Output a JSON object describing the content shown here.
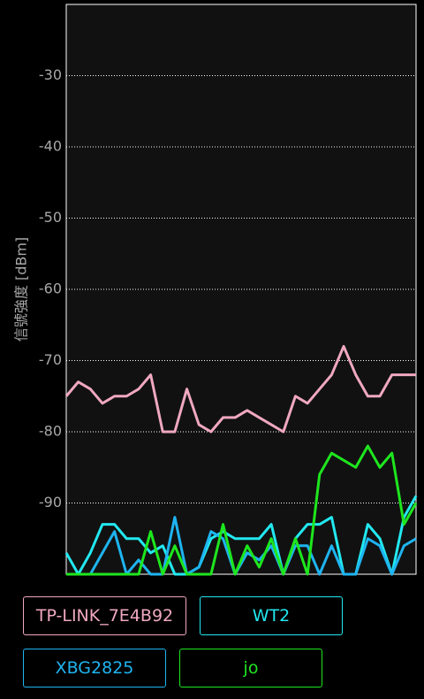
{
  "chart_data": {
    "type": "line",
    "ylabel": "信號強度 [dBm]",
    "ylim": [
      -100,
      -20
    ],
    "yticks": [
      -90,
      -80,
      -70,
      -60,
      -50,
      -40,
      -30
    ],
    "grid": true,
    "series": [
      {
        "name": "TP-LINK_7E4B92",
        "color": "#f0a8c0",
        "values": [
          -75,
          -73,
          -74,
          -76,
          -75,
          -75,
          -74,
          -72,
          -80,
          -80,
          -74,
          -79,
          -80,
          -78,
          -78,
          -77,
          -78,
          -79,
          -80,
          -75,
          -76,
          -74,
          -72,
          -68,
          -72,
          -75,
          -75,
          -72,
          -72,
          -72
        ]
      },
      {
        "name": "WT2",
        "color": "#22e8f0",
        "values": [
          -97,
          -100,
          -97,
          -93,
          -93,
          -95,
          -95,
          -97,
          -96,
          -100,
          -100,
          -99,
          -95,
          -94,
          -95,
          -95,
          -95,
          -93,
          -100,
          -95,
          -93,
          -93,
          -92,
          -100,
          -100,
          -93,
          -95,
          -100,
          -92,
          -89
        ]
      },
      {
        "name": "XBG2825",
        "color": "#1eb4f0",
        "values": [
          -100,
          -100,
          -100,
          -97,
          -94,
          -100,
          -98,
          -100,
          -100,
          -92,
          -100,
          -99,
          -94,
          -95,
          -100,
          -97,
          -98,
          -96,
          -100,
          -96,
          -96,
          -100,
          -96,
          -100,
          -100,
          -95,
          -96,
          -100,
          -96,
          -95
        ]
      },
      {
        "name": "jo",
        "color": "#1ee61e",
        "values": [
          -100,
          -100,
          -100,
          -100,
          -100,
          -100,
          -100,
          -94,
          -100,
          -96,
          -100,
          -100,
          -100,
          -93,
          -100,
          -96,
          -99,
          -95,
          -100,
          -95,
          -100,
          -86,
          -83,
          -84,
          -85,
          -82,
          -85,
          -83,
          -93,
          -90
        ]
      }
    ]
  }
}
